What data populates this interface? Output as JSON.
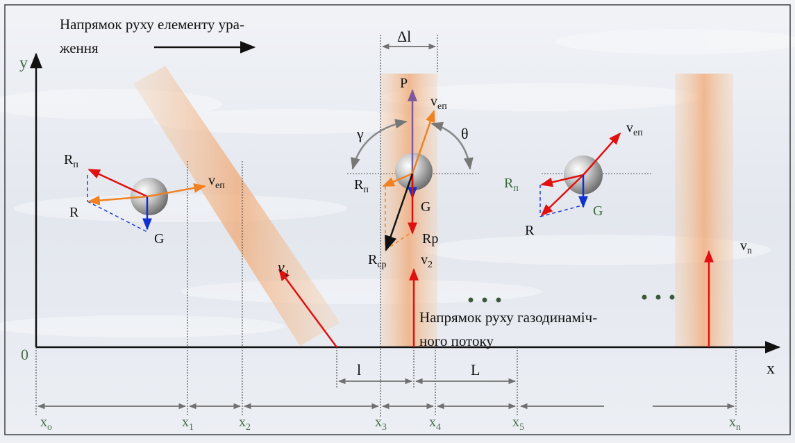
{
  "colors": {
    "background": "#eef0f4",
    "frame": "#404040",
    "axis": "#111111",
    "red_vector": "#e01010",
    "orange_vector": "#f08020",
    "blue_vector": "#1030d0",
    "purple_vector": "#7a5a9a",
    "black_vector": "#111111",
    "gray_arc": "#888888",
    "dim_line": "#707070",
    "stream_band": "#f2b07a",
    "green_label": "#4a6a4a"
  },
  "text": {
    "direction_element": "Напрямок руху елементу ура-",
    "direction_element_2": "ження",
    "direction_stream": "Напрямок руху газодинаміч-",
    "direction_stream_2": "ного потоку"
  },
  "axes": {
    "origin": "0",
    "x": "x",
    "y": "y"
  },
  "x_marks": [
    {
      "base": "x",
      "sub": "o"
    },
    {
      "base": "x",
      "sub": "1"
    },
    {
      "base": "x",
      "sub": "2"
    },
    {
      "base": "x",
      "sub": "3"
    },
    {
      "base": "x",
      "sub": "4"
    },
    {
      "base": "x",
      "sub": "5"
    },
    {
      "base": "x",
      "sub": "n"
    }
  ],
  "dimensions": {
    "delta_l": "Δl",
    "l": "l",
    "L": "L"
  },
  "streams": {
    "v1": {
      "base": "v",
      "sub": "1"
    },
    "v2": {
      "base": "v",
      "sub": "2"
    },
    "vn": {
      "base": "v",
      "sub": "n"
    }
  },
  "vectors": {
    "R_pi": {
      "base": "R",
      "sub": "п"
    },
    "R": "R",
    "G": "G",
    "v_ep": {
      "base": "v",
      "sub": "еп"
    },
    "P": "P",
    "Rp": "Rp",
    "R_cp": {
      "base": "R",
      "sub": "ср"
    },
    "gamma": "γ",
    "theta": "θ"
  },
  "ellipsis": ". . ."
}
